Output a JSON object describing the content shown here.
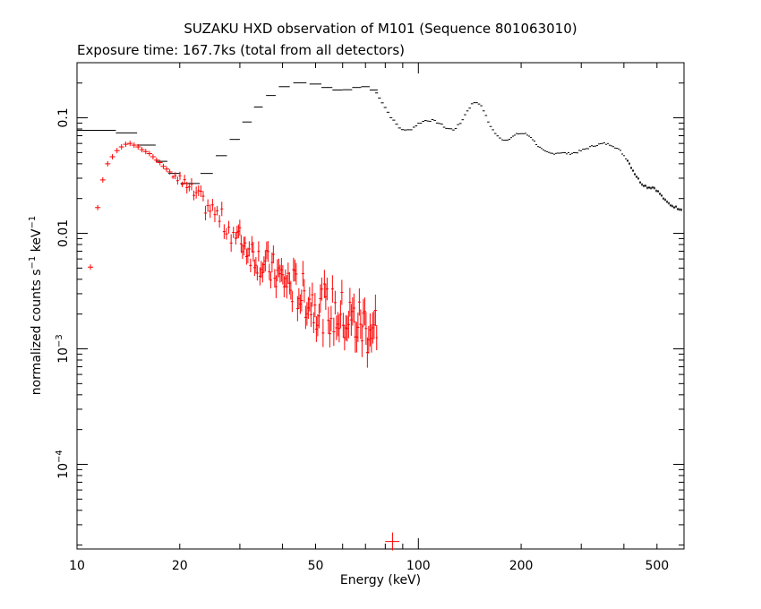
{
  "chart_data": {
    "type": "scatter",
    "title": "SUZAKU HXD observation of M101 (Sequence 801063010)",
    "subtitle": "Exposure time: 167.7ks (total from all detectors)",
    "xlabel": "Energy (keV)",
    "ylabel_main": "normalized counts s",
    "ylabel_sup1": "−1",
    "ylabel_mid": " keV",
    "ylabel_sup2": "−1",
    "x_scale": "log",
    "y_scale": "log",
    "xlim": [
      10,
      600
    ],
    "ylim": [
      1.85e-05,
      0.3
    ],
    "x_ticks": [
      {
        "v": 10,
        "label": "10"
      },
      {
        "v": 20,
        "label": "20"
      },
      {
        "v": 50,
        "label": "50"
      },
      {
        "v": 100,
        "label": "100"
      },
      {
        "v": 200,
        "label": "200"
      },
      {
        "v": 500,
        "label": "500"
      }
    ],
    "y_ticks": [
      {
        "v": 0.1,
        "base": "0.1",
        "sup": ""
      },
      {
        "v": 0.01,
        "base": "0.01",
        "sup": ""
      },
      {
        "v": 0.001,
        "base": "10",
        "sup": "−3"
      },
      {
        "v": 0.0001,
        "base": "10",
        "sup": "−4"
      }
    ],
    "grid": false,
    "legend": "none",
    "series": [
      {
        "color": "#000000",
        "points": [
          {
            "x": 11.5,
            "y": 0.078,
            "xerr": 1.5
          },
          {
            "x": 14.0,
            "y": 0.074,
            "xerr": 1.0
          },
          {
            "x": 16.0,
            "y": 0.058,
            "xerr": 1.0
          },
          {
            "x": 17.7,
            "y": 0.042,
            "xerr": 0.7
          },
          {
            "x": 19.3,
            "y": 0.033,
            "xerr": 0.8
          },
          {
            "x": 21.5,
            "y": 0.027,
            "xerr": 1.4
          },
          {
            "x": 24.0,
            "y": 0.033,
            "xerr": 1.0
          },
          {
            "x": 26.5,
            "y": 0.047,
            "xerr": 1.0
          },
          {
            "x": 29.0,
            "y": 0.065,
            "xerr": 1.0
          },
          {
            "x": 31.5,
            "y": 0.092,
            "xerr": 1.0
          },
          {
            "x": 34.0,
            "y": 0.124,
            "xerr": 1.0
          },
          {
            "x": 37.0,
            "y": 0.156,
            "xerr": 1.2
          },
          {
            "x": 40.5,
            "y": 0.186,
            "xerr": 1.5
          },
          {
            "x": 45.0,
            "y": 0.201,
            "xerr": 2.0
          },
          {
            "x": 50.0,
            "y": 0.196,
            "xerr": 2.0
          },
          {
            "x": 54.0,
            "y": 0.183,
            "xerr": 2.0
          },
          {
            "x": 58.0,
            "y": 0.174,
            "xerr": 2.0
          },
          {
            "x": 62.0,
            "y": 0.175,
            "xerr": 2.0
          },
          {
            "x": 66.0,
            "y": 0.183,
            "xerr": 2.0
          },
          {
            "x": 70.0,
            "y": 0.186,
            "xerr": 2.0
          },
          {
            "x": 74.0,
            "y": 0.174,
            "xerr": 2.0
          }
        ],
        "curve": [
          [
            74,
            0.174
          ],
          [
            76,
            0.16
          ],
          [
            78,
            0.14
          ],
          [
            81,
            0.115
          ],
          [
            84,
            0.097
          ],
          [
            88,
            0.082
          ],
          [
            92,
            0.077
          ],
          [
            96,
            0.081
          ],
          [
            100,
            0.089
          ],
          [
            105,
            0.095
          ],
          [
            110,
            0.095
          ],
          [
            115,
            0.09
          ],
          [
            121,
            0.081
          ],
          [
            127,
            0.079
          ],
          [
            133,
            0.09
          ],
          [
            139,
            0.115
          ],
          [
            145,
            0.136
          ],
          [
            150,
            0.136
          ],
          [
            155,
            0.118
          ],
          [
            160,
            0.093
          ],
          [
            166,
            0.077
          ],
          [
            172,
            0.067
          ],
          [
            180,
            0.064
          ],
          [
            188,
            0.068
          ],
          [
            196,
            0.073
          ],
          [
            205,
            0.073
          ],
          [
            214,
            0.068
          ],
          [
            224,
            0.057
          ],
          [
            234,
            0.051
          ],
          [
            245,
            0.049
          ],
          [
            260,
            0.05
          ],
          [
            275,
            0.049
          ],
          [
            290,
            0.05
          ],
          [
            310,
            0.054
          ],
          [
            330,
            0.058
          ],
          [
            350,
            0.06
          ],
          [
            370,
            0.058
          ],
          [
            390,
            0.052
          ],
          [
            410,
            0.043
          ],
          [
            430,
            0.033
          ],
          [
            450,
            0.027
          ],
          [
            470,
            0.025
          ],
          [
            490,
            0.025
          ],
          [
            510,
            0.022
          ],
          [
            530,
            0.019
          ],
          [
            550,
            0.0175
          ],
          [
            575,
            0.0165
          ],
          [
            600,
            0.016
          ]
        ]
      },
      {
        "color": "#ff0000",
        "points": [
          {
            "x": 10.95,
            "y": 0.0051
          },
          {
            "x": 11.5,
            "y": 0.0167
          },
          {
            "x": 11.9,
            "y": 0.029
          },
          {
            "x": 12.3,
            "y": 0.04
          },
          {
            "x": 12.7,
            "y": 0.046
          },
          {
            "x": 13.1,
            "y": 0.052
          },
          {
            "x": 13.5,
            "y": 0.056
          },
          {
            "x": 13.9,
            "y": 0.059
          },
          {
            "x": 14.3,
            "y": 0.06
          },
          {
            "x": 14.7,
            "y": 0.058
          },
          {
            "x": 15.1,
            "y": 0.056
          },
          {
            "x": 15.5,
            "y": 0.053
          },
          {
            "x": 15.9,
            "y": 0.051
          },
          {
            "x": 16.3,
            "y": 0.049
          },
          {
            "x": 16.7,
            "y": 0.046
          },
          {
            "x": 17.1,
            "y": 0.043
          },
          {
            "x": 17.5,
            "y": 0.041
          },
          {
            "x": 17.9,
            "y": 0.038
          },
          {
            "x": 18.3,
            "y": 0.036
          },
          {
            "x": 18.7,
            "y": 0.034
          }
        ],
        "tail_trend": [
          [
            18.7,
            0.034
          ],
          [
            25,
            0.0155
          ],
          [
            35,
            0.0055
          ],
          [
            50,
            0.0024
          ],
          [
            65,
            0.0017
          ],
          [
            75,
            0.0015
          ]
        ],
        "tail_range": [
          19.1,
          75.5
        ],
        "outlier": {
          "x": 84.0,
          "y": 2.15e-05,
          "xerr": 4.0
        }
      }
    ]
  }
}
